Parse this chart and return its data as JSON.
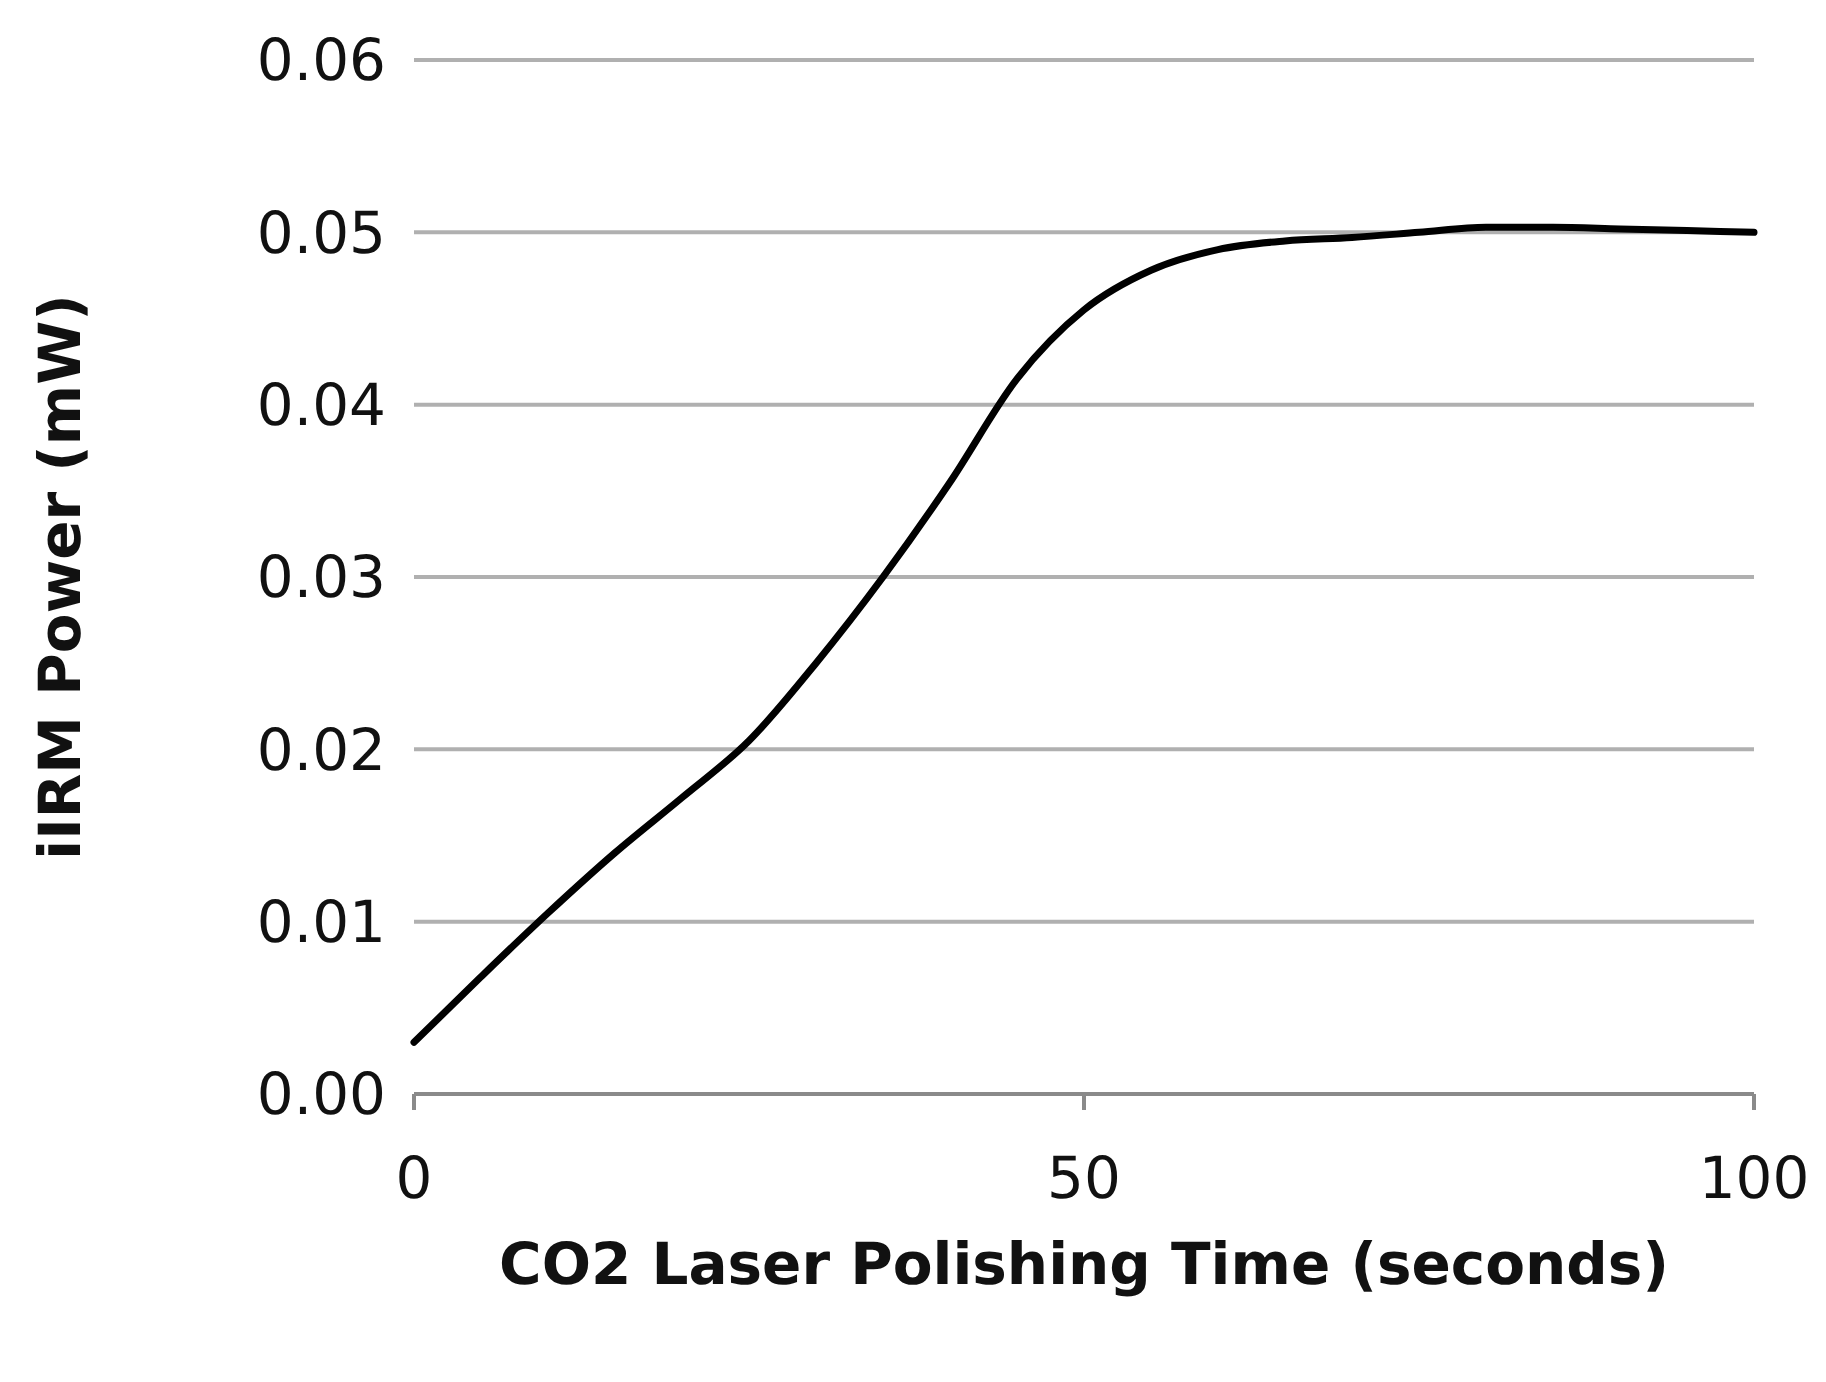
{
  "chart_data": {
    "type": "line",
    "xlabel": "CO2 Laser Polishing Time (seconds)",
    "ylabel": "iIRM Power (mW)",
    "x": [
      0,
      5,
      10,
      15,
      20,
      25,
      30,
      35,
      40,
      45,
      50,
      55,
      60,
      65,
      70,
      75,
      80,
      85,
      90,
      95,
      100
    ],
    "series": [
      {
        "color": "#000000",
        "values": [
          0.003,
          0.0068,
          0.0105,
          0.014,
          0.0172,
          0.0205,
          0.025,
          0.03,
          0.0355,
          0.0415,
          0.0455,
          0.0478,
          0.049,
          0.0495,
          0.0497,
          0.05,
          0.0503,
          0.0503,
          0.0502,
          0.0501,
          0.05
        ]
      }
    ],
    "xlim": [
      0,
      100
    ],
    "xticks": [
      0,
      50,
      100
    ],
    "ylim": [
      0,
      0.06
    ],
    "yticks": [
      {
        "value": 0,
        "label": "0.00"
      },
      {
        "value": 0.01,
        "label": "0.01"
      },
      {
        "value": 0.02,
        "label": "0.02"
      },
      {
        "value": 0.03,
        "label": "0.03"
      },
      {
        "value": 0.04,
        "label": "0.04"
      },
      {
        "value": 0.05,
        "label": "0.05"
      },
      {
        "value": 0.06,
        "label": "0.06"
      }
    ],
    "grid": "y",
    "marker": "none",
    "line_style": "solid"
  }
}
